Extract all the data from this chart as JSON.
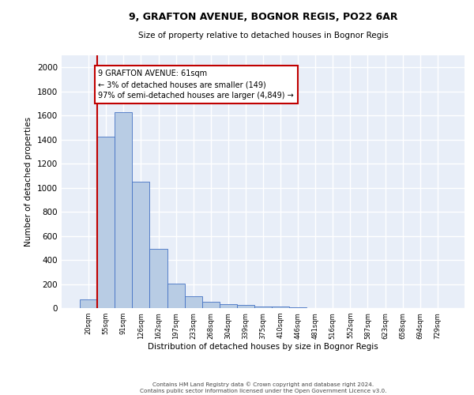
{
  "title_line1": "9, GRAFTON AVENUE, BOGNOR REGIS, PO22 6AR",
  "title_line2": "Size of property relative to detached houses in Bognor Regis",
  "xlabel": "Distribution of detached houses by size in Bognor Regis",
  "ylabel": "Number of detached properties",
  "footnote": "Contains HM Land Registry data © Crown copyright and database right 2024.\nContains public sector information licensed under the Open Government Licence v3.0.",
  "bar_color": "#b8cce4",
  "bar_edge_color": "#4472c4",
  "annotation_line_color": "#c00000",
  "annotation_box_color": "#c00000",
  "annotation_text": "9 GRAFTON AVENUE: 61sqm\n← 3% of detached houses are smaller (149)\n97% of semi-detached houses are larger (4,849) →",
  "property_size": 61,
  "categories": [
    "20sqm",
    "55sqm",
    "91sqm",
    "126sqm",
    "162sqm",
    "197sqm",
    "233sqm",
    "268sqm",
    "304sqm",
    "339sqm",
    "375sqm",
    "410sqm",
    "446sqm",
    "481sqm",
    "516sqm",
    "552sqm",
    "587sqm",
    "623sqm",
    "658sqm",
    "694sqm",
    "729sqm"
  ],
  "values": [
    75,
    1425,
    1625,
    1050,
    490,
    205,
    100,
    50,
    35,
    25,
    15,
    10,
    5,
    3,
    2,
    2,
    1,
    1,
    1,
    0,
    0
  ],
  "ylim": [
    0,
    2100
  ],
  "yticks": [
    0,
    200,
    400,
    600,
    800,
    1000,
    1200,
    1400,
    1600,
    1800,
    2000
  ],
  "background_color": "#e8eef8",
  "grid_color": "#ffffff"
}
